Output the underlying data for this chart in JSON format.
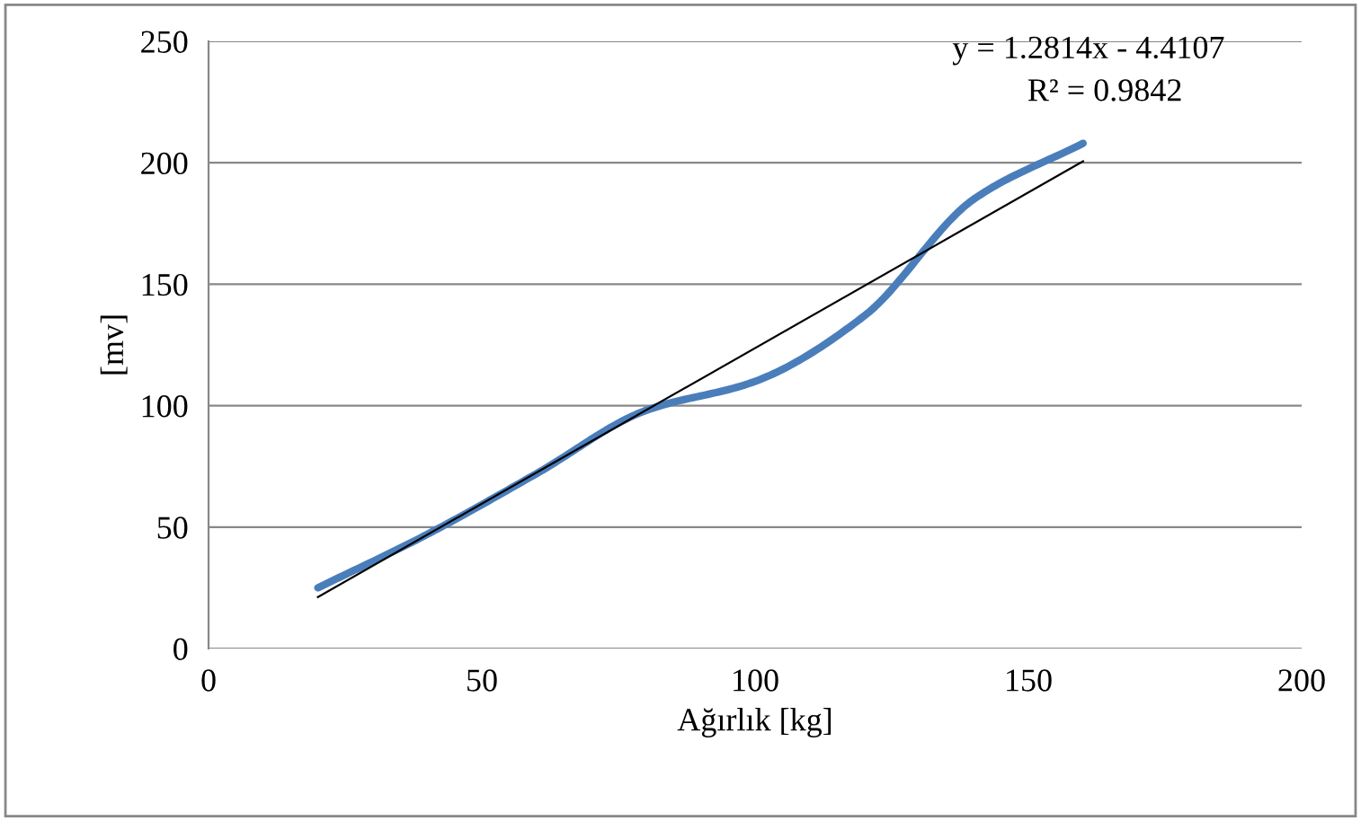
{
  "chart_data": {
    "type": "line",
    "xlabel": "Ağırlık [kg]",
    "ylabel": "[mv]",
    "series": [
      {
        "color": "#4a7ebb",
        "x": [
          20,
          40,
          60,
          80,
          100,
          120,
          140,
          160
        ],
        "values": [
          25,
          47,
          72,
          98,
          110,
          137,
          185,
          208
        ]
      },
      {
        "color": "#000000",
        "x": [
          20,
          160
        ],
        "values": [
          21.2,
          200.6
        ]
      }
    ],
    "annotations": [
      "y = 1.2814x - 4.4107",
      "R² = 0.9842"
    ],
    "xlim": [
      0,
      200
    ],
    "xticks": [
      0,
      50,
      100,
      150,
      200
    ],
    "ylim": [
      0,
      250
    ],
    "yticks": [
      0,
      50,
      100,
      150,
      200,
      250
    ],
    "grid": "y",
    "legend": false,
    "marker": "none"
  }
}
